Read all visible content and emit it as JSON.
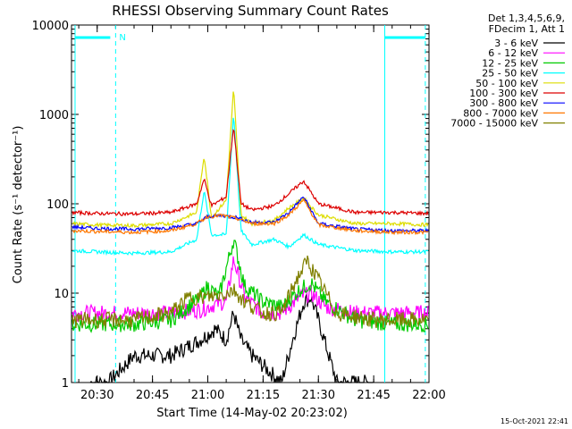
{
  "chart_data": {
    "type": "line",
    "title": "RHESSI Observing Summary Count Rates",
    "xlabel": "Start Time (14-May-02 20:23:02)",
    "ylabel": "Count Rate (s⁻¹ detector⁻¹)",
    "yscale": "log",
    "ylim": [
      1,
      10000
    ],
    "xlim": [
      "20:23:02",
      "22:00"
    ],
    "x_ticks": [
      "20:30",
      "20:45",
      "21:00",
      "21:15",
      "21:30",
      "21:45",
      "22:00"
    ],
    "y_ticks": [
      "1",
      "10",
      "100",
      "1000",
      "10000"
    ],
    "legend_header": [
      "Det 1,3,4,5,6,9,",
      "FDecim 1, Att 1"
    ],
    "legend_position": "right",
    "timestamp": "15-Oct-2021 22:41",
    "attenuator_label": "N",
    "markers": {
      "night_start": "20:24",
      "night_end": "20:35",
      "night2_start": "21:48",
      "night2_end": "21:59"
    },
    "series": [
      {
        "name": "3 - 6 keV",
        "color": "#000000",
        "x": [
          "20:28",
          "20:33",
          "20:40",
          "20:50",
          "20:58",
          "21:02",
          "21:05",
          "21:07",
          "21:09",
          "21:12",
          "21:20",
          "21:23",
          "21:26",
          "21:28",
          "21:30",
          "21:35",
          "21:45"
        ],
        "y": [
          1,
          1,
          2,
          2,
          3,
          4,
          3,
          6,
          3,
          2,
          1,
          3,
          8,
          9,
          5,
          1,
          1
        ]
      },
      {
        "name": "6 - 12 keV",
        "color": "#ff00ff",
        "x": [
          "20:23",
          "20:30",
          "20:40",
          "20:50",
          "20:58",
          "21:02",
          "21:05",
          "21:07",
          "21:10",
          "21:15",
          "21:20",
          "21:25",
          "21:28",
          "21:32",
          "21:40",
          "21:50",
          "22:00"
        ],
        "y": [
          6,
          6,
          6,
          6,
          6.5,
          7.5,
          8,
          24,
          9,
          6,
          6,
          9,
          10,
          7,
          6,
          6,
          6
        ]
      },
      {
        "name": "12 - 25 keV",
        "color": "#00cc00",
        "x": [
          "20:23",
          "20:30",
          "20:40",
          "20:50",
          "20:58",
          "21:00",
          "21:03",
          "21:07",
          "21:10",
          "21:15",
          "21:20",
          "21:25",
          "21:28",
          "21:32",
          "21:40",
          "21:50",
          "22:00"
        ],
        "y": [
          4.5,
          4.5,
          4.5,
          5,
          9,
          12,
          9,
          40,
          12,
          8,
          7,
          11,
          13,
          8,
          5,
          4.5,
          4.5
        ]
      },
      {
        "name": "25 - 50 keV",
        "color": "#00ffff",
        "x": [
          "20:23",
          "20:30",
          "20:40",
          "20:50",
          "20:57",
          "20:59",
          "21:01",
          "21:05",
          "21:07",
          "21:09",
          "21:12",
          "21:18",
          "21:22",
          "21:26",
          "21:30",
          "21:40",
          "21:50",
          "22:00"
        ],
        "y": [
          30,
          29,
          28,
          29,
          40,
          140,
          45,
          45,
          1050,
          50,
          35,
          40,
          33,
          45,
          35,
          30,
          29,
          29
        ]
      },
      {
        "name": "50 - 100 keV",
        "color": "#dddd00",
        "x": [
          "20:23",
          "20:30",
          "20:40",
          "20:50",
          "20:57",
          "20:59",
          "21:01",
          "21:05",
          "21:07",
          "21:09",
          "21:12",
          "21:18",
          "21:22",
          "21:26",
          "21:30",
          "21:40",
          "21:50",
          "22:00"
        ],
        "y": [
          60,
          58,
          57,
          60,
          80,
          350,
          70,
          110,
          2000,
          75,
          60,
          65,
          90,
          115,
          75,
          60,
          60,
          58
        ]
      },
      {
        "name": "100 - 300 keV",
        "color": "#dd0000",
        "x": [
          "20:23",
          "20:30",
          "20:40",
          "20:50",
          "20:57",
          "20:59",
          "21:01",
          "21:05",
          "21:07",
          "21:09",
          "21:12",
          "21:18",
          "21:22",
          "21:26",
          "21:30",
          "21:40",
          "21:50",
          "22:00"
        ],
        "y": [
          80,
          78,
          77,
          80,
          100,
          190,
          95,
          120,
          750,
          100,
          85,
          95,
          130,
          180,
          100,
          80,
          80,
          78
        ]
      },
      {
        "name": "300 - 800 keV",
        "color": "#0000ff",
        "x": [
          "20:23",
          "20:30",
          "20:40",
          "20:50",
          "20:57",
          "21:00",
          "21:04",
          "21:08",
          "21:12",
          "21:18",
          "21:22",
          "21:26",
          "21:30",
          "21:40",
          "21:50",
          "22:00"
        ],
        "y": [
          55,
          53,
          52,
          54,
          60,
          72,
          74,
          70,
          62,
          62,
          80,
          120,
          60,
          52,
          50,
          50
        ]
      },
      {
        "name": "800 - 7000 keV",
        "color": "#ff7700",
        "x": [
          "20:23",
          "20:30",
          "20:40",
          "20:50",
          "20:57",
          "21:00",
          "21:04",
          "21:08",
          "21:12",
          "21:18",
          "21:22",
          "21:26",
          "21:30",
          "21:40",
          "21:50",
          "22:00"
        ],
        "y": [
          50,
          49,
          48,
          50,
          60,
          72,
          74,
          68,
          60,
          60,
          75,
          110,
          58,
          50,
          48,
          48
        ]
      },
      {
        "name": "7000 - 15000 keV",
        "color": "#808000",
        "x": [
          "20:23",
          "20:30",
          "20:40",
          "20:50",
          "20:55",
          "21:00",
          "21:05",
          "21:07",
          "21:10",
          "21:15",
          "21:20",
          "21:24",
          "21:27",
          "21:30",
          "21:35",
          "21:45",
          "22:00"
        ],
        "y": [
          5,
          5,
          5,
          6,
          9,
          9,
          10,
          11,
          8,
          6,
          6,
          14,
          23,
          14,
          6,
          5,
          5
        ]
      }
    ]
  }
}
